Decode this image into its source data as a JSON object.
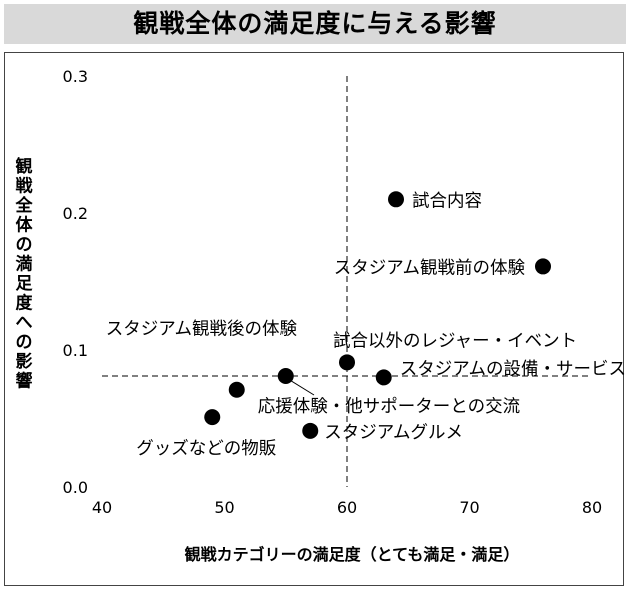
{
  "title": "観戦全体の満足度に与える影響",
  "chart_data": {
    "type": "scatter",
    "xlabel": "観戦カテゴリーの満足度（とても満足・満足）",
    "ylabel": "観戦全体の満足度への影響",
    "xlim": [
      40,
      80
    ],
    "ylim": [
      0.0,
      0.3
    ],
    "x_ticks": [
      "40",
      "50",
      "60",
      "70",
      "80"
    ],
    "y_ticks": [
      "0.0",
      "0.1",
      "0.2",
      "0.3"
    ],
    "reference_lines": {
      "x": 60,
      "y": 0.081
    },
    "grid": false,
    "points": [
      {
        "label": "試合内容",
        "x": 64,
        "y": 0.21
      },
      {
        "label": "スタジアム観戦前の体験",
        "x": 76,
        "y": 0.161
      },
      {
        "label": "試合以外のレジャー・イベント",
        "x": 60,
        "y": 0.091
      },
      {
        "label": "スタジアムの設備・サービス",
        "x": 63,
        "y": 0.08
      },
      {
        "label": "応援体験・他サポーターとの交流",
        "x": 55,
        "y": 0.081
      },
      {
        "label": "スタジアム観戦後の体験",
        "x": 51,
        "y": 0.071
      },
      {
        "label": "スタジアムグルメ",
        "x": 57,
        "y": 0.041
      },
      {
        "label": "グッズなどの物販",
        "x": 49,
        "y": 0.051
      }
    ]
  }
}
